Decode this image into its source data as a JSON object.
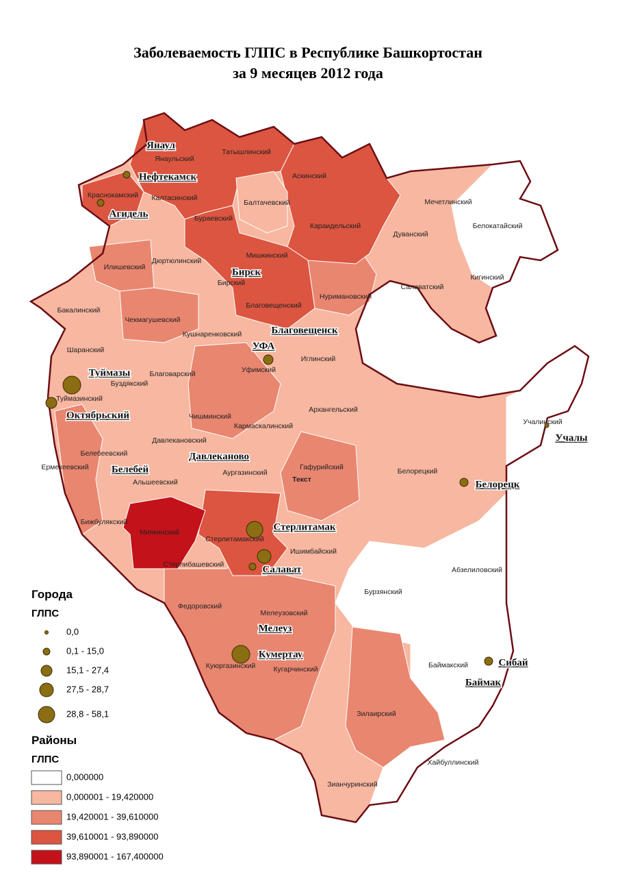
{
  "title": [
    "Заболеваемость ГЛПС в Республике Башкортостан",
    "за 9 месяцев 2012 года"
  ],
  "districts": [
    "Янаульский",
    "Татышлинский",
    "Аскинский",
    "Краснокамский",
    "Калтасинский",
    "Балтачевский",
    "Бураевский",
    "Караидельский",
    "Мечетлинский",
    "Дуванский",
    "Белокатайский",
    "Илишевский",
    "Дюртюлинский",
    "Мишкинский",
    "Бирский",
    "Кигинский",
    "Салаватский",
    "Нуримановский",
    "Благовещенский",
    "Бакалинский",
    "Чекмагушевский",
    "Кушнаренковский",
    "Шаранский",
    "Иглинский",
    "Уфимский",
    "Благоварский",
    "Буздякский",
    "Туймазинский",
    "Архангельский",
    "Учалинский",
    "Чишминский",
    "Кармаскалинский",
    "Давлекановский",
    "Белебеевский",
    "Гафурийский",
    "Ермекеевский",
    "Аургазинский",
    "Белорецкий",
    "Альшеевский",
    "Бижбулякский",
    "Миякинский",
    "Стерлитамакский",
    "Ишимбайский",
    "Стерлибашевский",
    "Абзелиловский",
    "Бурзянский",
    "Федоровский",
    "Мелеузовский",
    "Кугарчинский",
    "Куюргазинский",
    "Баймакский",
    "Зилаирский",
    "Хайбуллинский",
    "Зианчуринский"
  ],
  "cities": [
    "Янаул",
    "Нефтекамск",
    "Агидель",
    "Бирск",
    "Благовещенск",
    "УФА",
    "Туймазы",
    "Октябрьский",
    "Давлеканово",
    "Белебей",
    "Стерлитамак",
    "Салават",
    "Мелеуз",
    "Кумертау",
    "Белорецк",
    "Учалы",
    "Сибай",
    "Баймак"
  ],
  "map_note": "Текст",
  "legend": {
    "cities": {
      "title": "Города",
      "subtitle": "ГЛПС",
      "classes": [
        "0,0",
        "0,1 - 15,0",
        "15,1 - 27,4",
        "27,5 - 28,7",
        "28,8 - 58,1"
      ]
    },
    "districts": {
      "title": "Районы",
      "subtitle": "ГЛПС",
      "classes": [
        "0,000000",
        "0,000001 - 19,420000",
        "19,420001 - 39,610000",
        "39,610001 - 93,890000",
        "93,890001 - 167,400000"
      ]
    }
  }
}
